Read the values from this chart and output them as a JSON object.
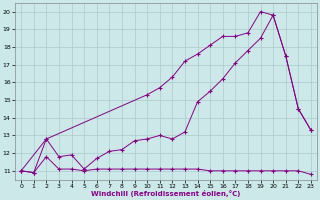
{
  "xlabel": "Windchill (Refroidissement éolien,°C)",
  "background_color": "#cce8e8",
  "grid_color": "#aacccc",
  "line_color": "#880088",
  "xlim": [
    -0.5,
    23.5
  ],
  "ylim": [
    10.5,
    20.5
  ],
  "xticks": [
    0,
    1,
    2,
    3,
    4,
    5,
    6,
    7,
    8,
    9,
    10,
    11,
    12,
    13,
    14,
    15,
    16,
    17,
    18,
    19,
    20,
    21,
    22,
    23
  ],
  "yticks": [
    11,
    12,
    13,
    14,
    15,
    16,
    17,
    18,
    19,
    20
  ],
  "series": {
    "line_min": {
      "x": [
        0,
        1,
        2,
        3,
        4,
        5,
        6,
        7,
        8,
        9,
        10,
        11,
        12,
        13,
        14,
        15,
        16,
        17,
        18,
        19,
        20,
        21,
        22,
        23
      ],
      "y": [
        11.0,
        10.9,
        11.8,
        11.1,
        11.1,
        11.0,
        11.1,
        11.1,
        11.1,
        11.1,
        11.1,
        11.1,
        11.1,
        11.1,
        11.1,
        11.0,
        11.0,
        11.0,
        11.0,
        11.0,
        11.0,
        11.0,
        11.0,
        10.8
      ]
    },
    "line_mid": {
      "x": [
        0,
        1,
        2,
        3,
        4,
        5,
        6,
        7,
        8,
        9,
        10,
        11,
        12,
        13,
        14,
        15,
        16,
        17,
        18,
        19,
        20,
        21,
        22,
        23
      ],
      "y": [
        11.0,
        10.9,
        12.8,
        11.8,
        11.9,
        11.1,
        11.7,
        12.1,
        12.2,
        12.7,
        12.8,
        13.0,
        12.8,
        13.2,
        14.9,
        15.5,
        16.2,
        17.1,
        17.8,
        18.5,
        19.8,
        17.5,
        14.5,
        13.3
      ]
    },
    "line_max": {
      "x": [
        0,
        2,
        10,
        11,
        12,
        13,
        14,
        15,
        16,
        17,
        18,
        19,
        20,
        21,
        22,
        23
      ],
      "y": [
        11.0,
        12.8,
        15.3,
        15.7,
        16.3,
        17.2,
        17.6,
        18.1,
        18.6,
        18.6,
        18.8,
        20.0,
        19.8,
        17.5,
        14.5,
        13.3
      ]
    }
  }
}
